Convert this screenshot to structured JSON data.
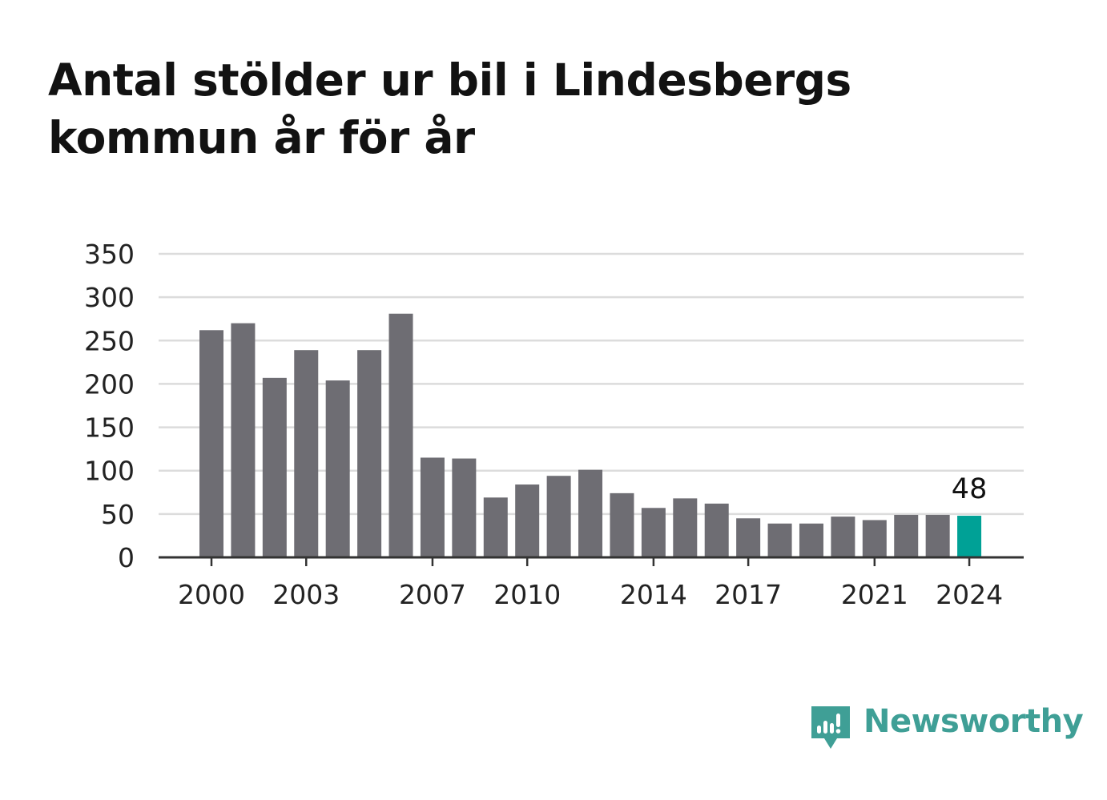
{
  "title": "Antal stölder ur bil i Lindesbergs kommun år för år",
  "brand": {
    "name": "Newsworthy",
    "icon": "newsworthy-logo-icon",
    "color": "#3f9f96"
  },
  "colors": {
    "bar": "#6e6d73",
    "highlight": "#00a196",
    "grid": "#dcdcdc",
    "axis": "#333333",
    "text": "#222222"
  },
  "chart_data": {
    "type": "bar",
    "title": "Antal stölder ur bil i Lindesbergs kommun år för år",
    "xlabel": "",
    "ylabel": "",
    "categories": [
      2000,
      2001,
      2002,
      2003,
      2004,
      2005,
      2006,
      2007,
      2008,
      2009,
      2010,
      2011,
      2012,
      2013,
      2014,
      2015,
      2016,
      2017,
      2018,
      2019,
      2020,
      2021,
      2022,
      2023,
      2024
    ],
    "values": [
      262,
      270,
      207,
      239,
      204,
      239,
      281,
      115,
      114,
      69,
      84,
      94,
      101,
      74,
      57,
      68,
      62,
      45,
      39,
      39,
      47,
      43,
      49,
      49,
      48
    ],
    "ylim": [
      0,
      350
    ],
    "yticks": [
      "0",
      "50",
      "100",
      "150",
      "200",
      "250",
      "300",
      "350"
    ],
    "xticks": [
      "2000",
      "2003",
      "2007",
      "2010",
      "2014",
      "2017",
      "2021",
      "2024"
    ],
    "highlight": {
      "category": 2024,
      "label": "48"
    },
    "grid": true,
    "legend": "none"
  }
}
